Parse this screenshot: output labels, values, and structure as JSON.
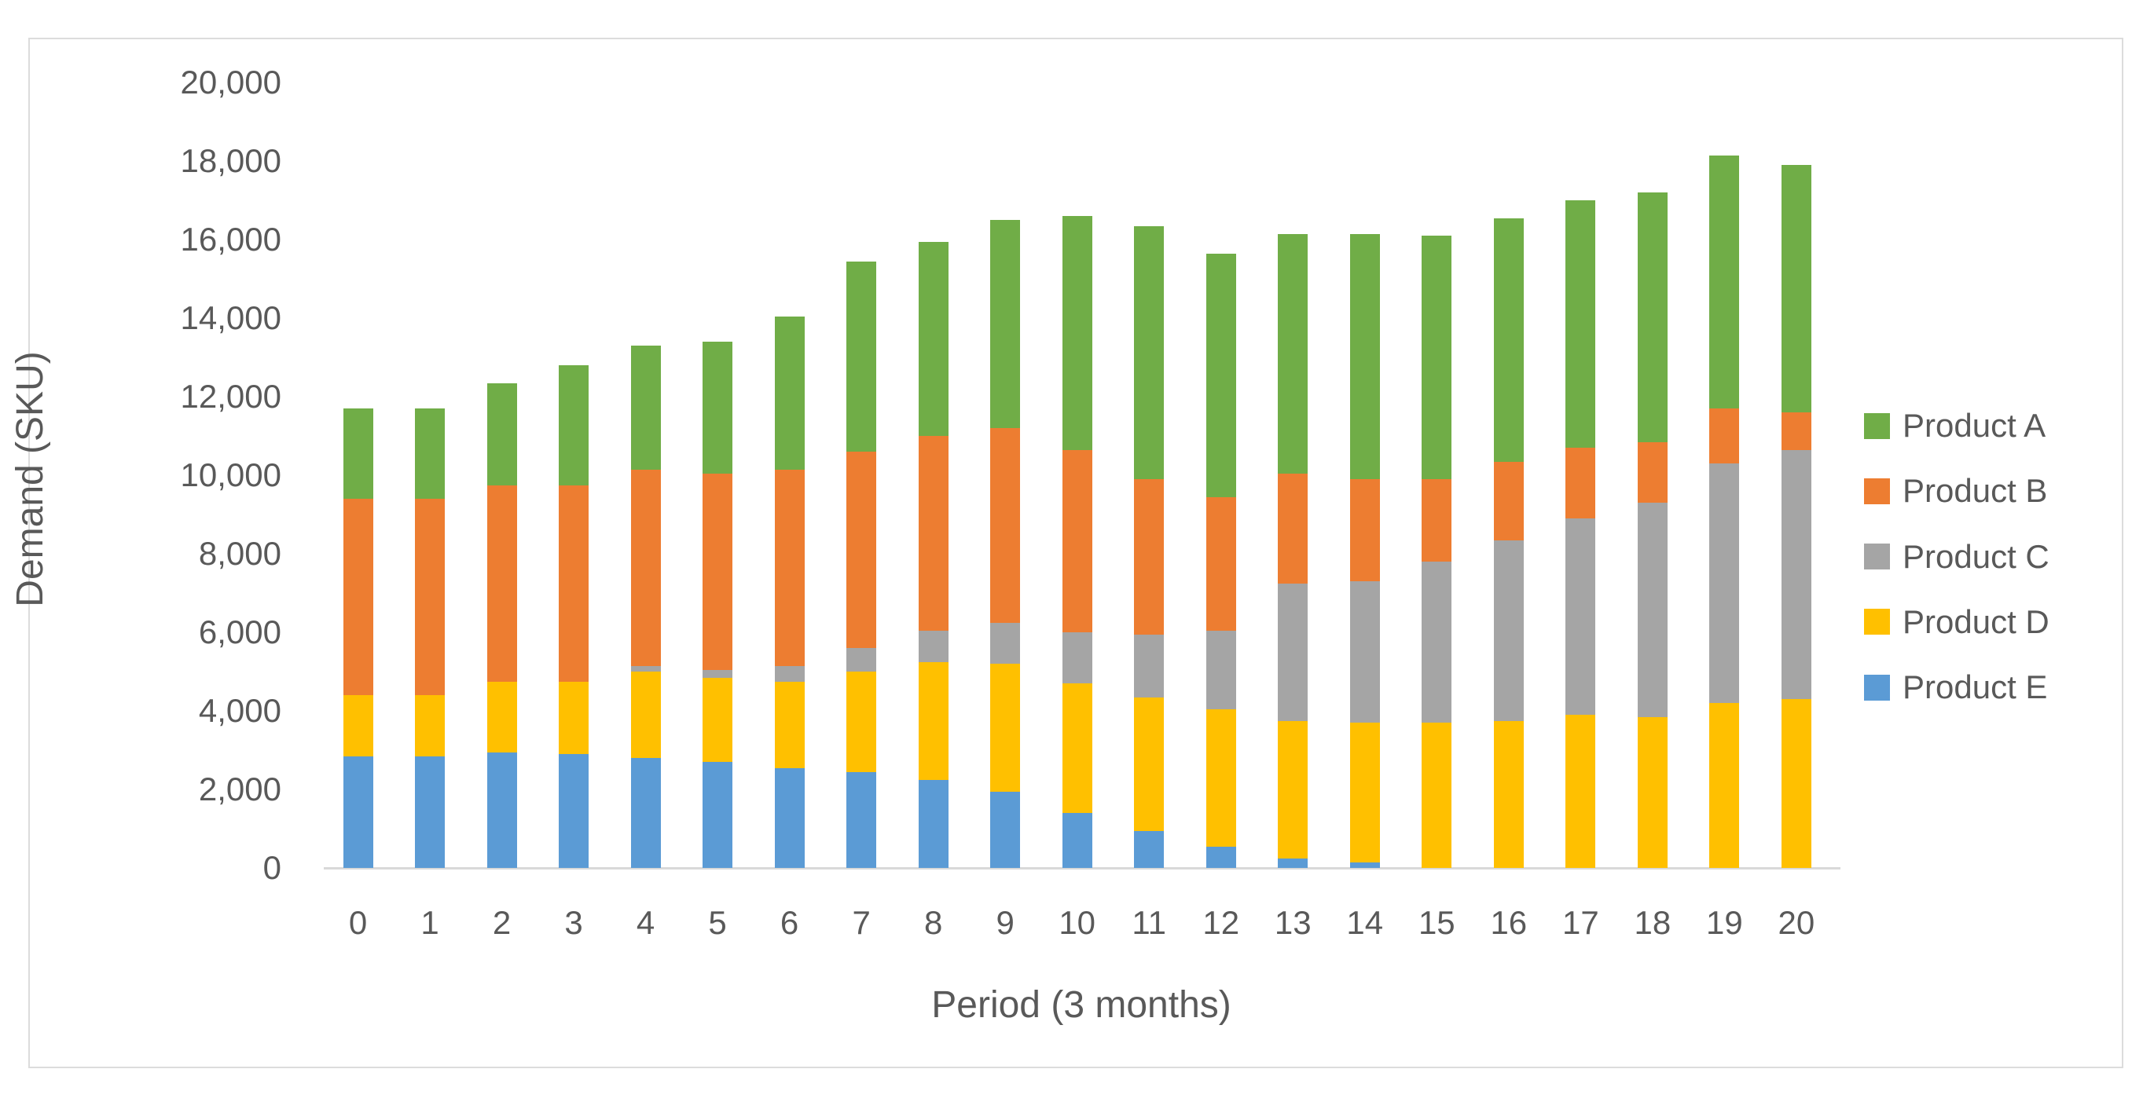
{
  "figure": {
    "background_color": "#ffffff",
    "frame_border_color": "#dcdcdc",
    "axis_line_color": "#d9d9d9",
    "text_color": "#595959"
  },
  "chart_data": {
    "type": "bar",
    "stacked": true,
    "title": "",
    "xlabel": "Period (3 months)",
    "ylabel": "Demand (SKU)",
    "ylim": [
      0,
      20000
    ],
    "ytick_step": 2000,
    "ytick_labels": [
      "0",
      "2,000",
      "4,000",
      "6,000",
      "8,000",
      "10,000",
      "12,000",
      "14,000",
      "16,000",
      "18,000",
      "20,000"
    ],
    "grid": false,
    "legend_position": "right",
    "categories": [
      0,
      1,
      2,
      3,
      4,
      5,
      6,
      7,
      8,
      9,
      10,
      11,
      12,
      13,
      14,
      15,
      16,
      17,
      18,
      19,
      20
    ],
    "series": [
      {
        "name": "Product E",
        "color": "#5B9BD5",
        "values": [
          2850,
          2850,
          2950,
          2900,
          2800,
          2700,
          2550,
          2450,
          2250,
          1950,
          1400,
          950,
          550,
          250,
          150,
          0,
          0,
          0,
          0,
          0,
          0
        ]
      },
      {
        "name": "Product D",
        "color": "#FFC000",
        "values": [
          1550,
          1550,
          1800,
          1850,
          2200,
          2150,
          2200,
          2550,
          3000,
          3250,
          3300,
          3400,
          3500,
          3500,
          3550,
          3700,
          3750,
          3900,
          3850,
          4200,
          4300
        ]
      },
      {
        "name": "Product C",
        "color": "#A5A5A5",
        "values": [
          0,
          0,
          0,
          0,
          150,
          200,
          400,
          600,
          800,
          1050,
          1300,
          1600,
          2000,
          3500,
          3600,
          4100,
          4600,
          5000,
          5450,
          6100,
          6350
        ]
      },
      {
        "name": "Product B",
        "color": "#ED7D31",
        "values": [
          5000,
          5000,
          5000,
          5000,
          5000,
          5000,
          5000,
          5000,
          4950,
          4950,
          4650,
          3950,
          3400,
          2800,
          2600,
          2100,
          2000,
          1800,
          1550,
          1400,
          950
        ]
      },
      {
        "name": "Product A",
        "color": "#70AD47",
        "values": [
          2300,
          2300,
          2600,
          3050,
          3150,
          3350,
          3900,
          4850,
          4950,
          5300,
          5950,
          6450,
          6200,
          6100,
          6250,
          6200,
          6200,
          6300,
          6350,
          6450,
          6300
        ]
      }
    ],
    "legend": [
      {
        "label": "Product A",
        "color": "#70AD47"
      },
      {
        "label": "Product B",
        "color": "#ED7D31"
      },
      {
        "label": "Product C",
        "color": "#A5A5A5"
      },
      {
        "label": "Product D",
        "color": "#FFC000"
      },
      {
        "label": "Product E",
        "color": "#5B9BD5"
      }
    ]
  }
}
